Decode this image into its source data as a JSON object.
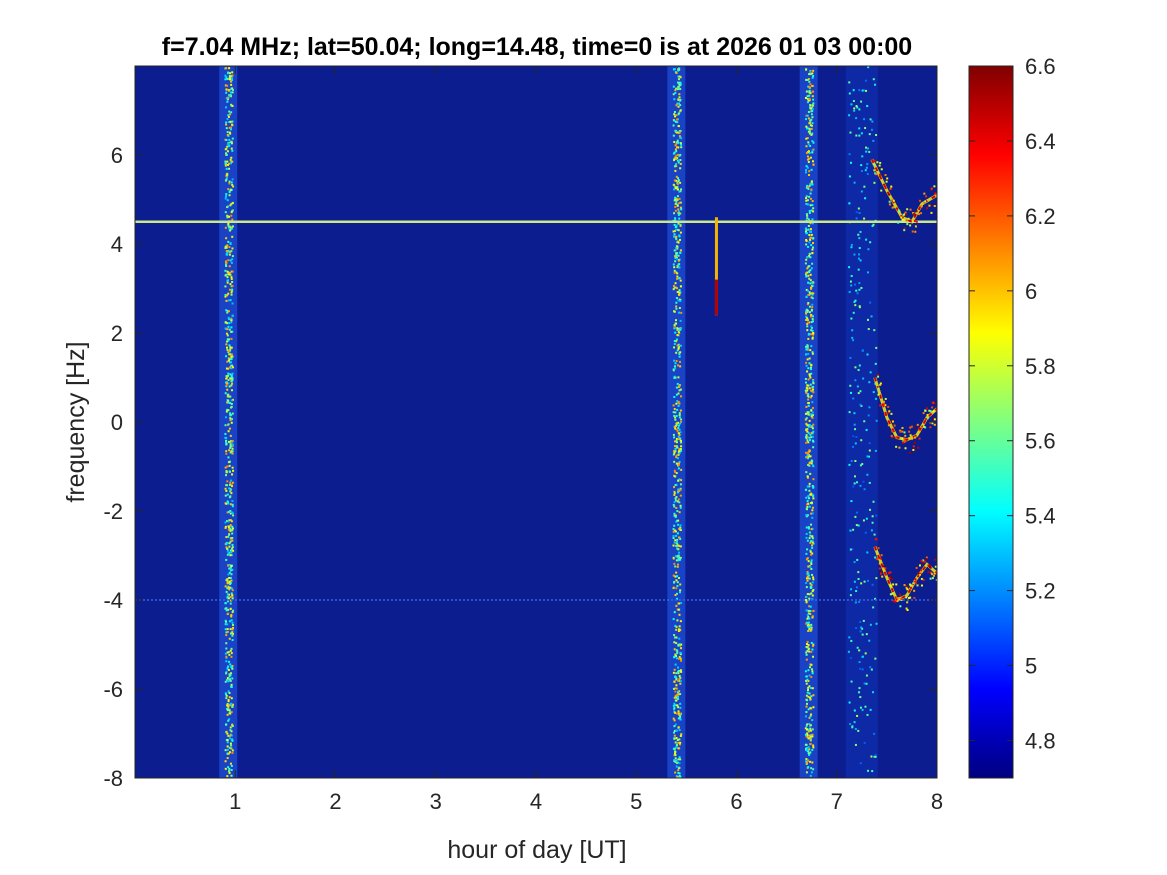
{
  "chart_data": {
    "type": "heatmap",
    "title": "f=7.04 MHz;  lat=50.04; long=14.48, time=0 is at 2026 01 03 00:00",
    "xlabel": "hour of day [UT]",
    "ylabel": "frequency [Hz]",
    "xlim": [
      0,
      8
    ],
    "ylim": [
      -8,
      8
    ],
    "x_ticks": [
      1,
      2,
      3,
      4,
      5,
      6,
      7,
      8
    ],
    "x_tick_labels": [
      "1",
      "2",
      "3",
      "4",
      "5",
      "6",
      "7",
      "8"
    ],
    "y_ticks": [
      -8,
      -6,
      -4,
      -2,
      0,
      2,
      4,
      6
    ],
    "y_tick_labels": [
      "-8",
      "-6",
      "-4",
      "-2",
      "0",
      "2",
      "4",
      "6"
    ],
    "colorbar": {
      "range": [
        4.7,
        6.6
      ],
      "ticks": [
        4.8,
        5,
        5.2,
        5.4,
        5.6,
        5.8,
        6,
        6.2,
        6.4,
        6.6
      ],
      "tick_labels": [
        "4.8",
        "5",
        "5.2",
        "5.4",
        "5.6",
        "5.8",
        "6",
        "6.2",
        "6.4",
        "6.6"
      ],
      "colormap": "jet"
    },
    "background_color": "#0b1d8f",
    "features": {
      "vertical_broadband_bands_hours": [
        0.93,
        5.4,
        6.72,
        7.25
      ],
      "horizontal_carrier_lines": [
        {
          "frequency": 4.5,
          "x_start": 0,
          "x_end": 8
        },
        {
          "frequency": -4.0,
          "x_start": 0,
          "x_end": 8
        }
      ],
      "short_burst": {
        "x": 5.8,
        "freq_start": 2.4,
        "freq_end": 4.6
      },
      "doppler_traces": [
        {
          "name": "upper",
          "x": [
            7.35,
            7.5,
            7.65,
            7.75,
            7.85,
            8.0
          ],
          "y": [
            5.9,
            5.2,
            4.6,
            4.5,
            4.9,
            5.1
          ]
        },
        {
          "name": "middle",
          "x": [
            7.38,
            7.5,
            7.6,
            7.7,
            7.8,
            7.9,
            8.0
          ],
          "y": [
            1.0,
            0.1,
            -0.35,
            -0.4,
            -0.3,
            0.1,
            0.3
          ]
        },
        {
          "name": "lower",
          "x": [
            7.38,
            7.5,
            7.6,
            7.7,
            7.8,
            7.9,
            8.0
          ],
          "y": [
            -2.8,
            -3.5,
            -4.0,
            -3.9,
            -3.5,
            -3.2,
            -3.4
          ]
        }
      ]
    }
  }
}
